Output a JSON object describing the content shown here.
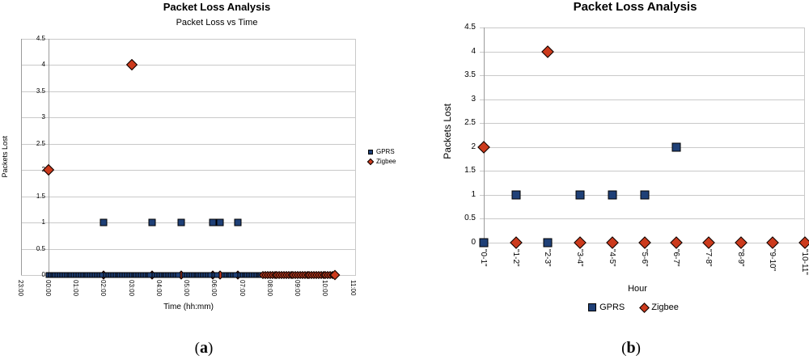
{
  "colors": {
    "gprs_fill": "#1F4077",
    "zigbee_fill": "#CC3A1C",
    "marker_border": "#000000",
    "gridline": "#C9C9C9",
    "axis_line": "#9B9B9B",
    "background": "#FFFFFF",
    "text": "#000000"
  },
  "chart_data": [
    {
      "panel": "a",
      "type": "scatter",
      "title": "Packet Loss Analysis",
      "subtitle": "Packet Loss vs Time",
      "xlabel": "Time (hh:mm)",
      "ylabel": "Packets Lost",
      "ylim": [
        0,
        4.5
      ],
      "y_ticks": [
        "0",
        "0.5",
        "1",
        "1.5",
        "2",
        "2.5",
        "3",
        "3.5",
        "4",
        "4.5"
      ],
      "x_ticks": [
        "23:00",
        "00:00",
        "01:00",
        "02:00",
        "03:00",
        "04:00",
        "05:00",
        "06:00",
        "07:00",
        "08:00",
        "09:00",
        "10:00",
        "11:00"
      ],
      "grid": "horizontal",
      "legend_position": "right",
      "caption": {
        "open": "(",
        "letter": "a",
        "close": ")"
      },
      "series": [
        {
          "name": "GPRS",
          "marker": "square",
          "color": "#1F4077",
          "loss_events": [
            {
              "time": "02:00",
              "hour": 2.0,
              "packets_lost": 1
            },
            {
              "time": "03:45",
              "hour": 3.75,
              "packets_lost": 1
            },
            {
              "time": "04:47",
              "hour": 4.78,
              "packets_lost": 1
            },
            {
              "time": "05:55",
              "hour": 5.92,
              "packets_lost": 1
            },
            {
              "time": "06:12",
              "hour": 6.2,
              "packets_lost": 1
            },
            {
              "time": "06:50",
              "hour": 6.83,
              "packets_lost": 1
            }
          ],
          "zero_loss_run": {
            "from": "00:00",
            "to": "07:45",
            "from_hour": 0,
            "to_hour": 7.75,
            "sample_interval_min": 5
          }
        },
        {
          "name": "Zigbee",
          "marker": "diamond",
          "color": "#CC3A1C",
          "loss_events": [
            {
              "time": "00:00",
              "hour": 0.0,
              "packets_lost": 2
            },
            {
              "time": "03:00",
              "hour": 3.02,
              "packets_lost": 4
            }
          ],
          "zero_loss_run": {
            "from": "07:45",
            "to": "10:20",
            "from_hour": 7.75,
            "to_hour": 10.33,
            "sample_interval_min": 5
          },
          "zero_loss_visible_at_hours": [
            2.0,
            3.75,
            4.78,
            5.92,
            6.2,
            6.83
          ]
        }
      ]
    },
    {
      "panel": "b",
      "type": "scatter",
      "title": "Packet Loss Analysis",
      "xlabel": "Hour",
      "ylabel": "Packets Lost",
      "ylim": [
        0,
        4.5
      ],
      "y_ticks": [
        "0",
        "0.5",
        "1",
        "1.5",
        "2",
        "2.5",
        "3",
        "3.5",
        "4",
        "4.5"
      ],
      "categories": [
        "\"0-1\"",
        "\"1-2\"",
        "\"2-3\"",
        "\"3-4\"",
        "\"4-5\"",
        "\"5-6\"",
        "\"6-7\"",
        "\"7-8\"",
        "\"8-9\"",
        "\"9-10\"",
        "\"10-11\""
      ],
      "grid": "horizontal",
      "legend_position": "bottom",
      "caption": {
        "open": "(",
        "letter": "b",
        "close": ")"
      },
      "series": [
        {
          "name": "GPRS",
          "marker": "square",
          "color": "#1F4077",
          "values": [
            0,
            1,
            0,
            1,
            1,
            1,
            2,
            null,
            null,
            null,
            null
          ]
        },
        {
          "name": "Zigbee",
          "marker": "diamond",
          "color": "#CC3A1C",
          "values": [
            2,
            0,
            4,
            0,
            0,
            0,
            0,
            0,
            0,
            0,
            0
          ]
        }
      ]
    }
  ]
}
